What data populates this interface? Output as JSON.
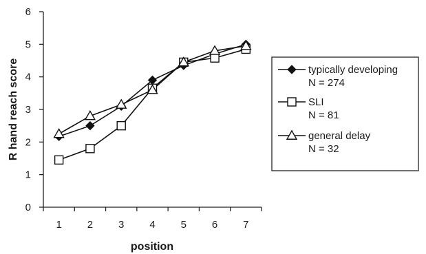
{
  "chart_data": {
    "type": "line",
    "title": "",
    "xlabel": "position",
    "ylabel": "R hand reach score",
    "x": [
      1,
      2,
      3,
      4,
      5,
      6,
      7
    ],
    "x_tick_labels": [
      "1",
      "2",
      "3",
      "4",
      "5",
      "6",
      "7"
    ],
    "xlim": [
      0.5,
      7.5
    ],
    "ylim": [
      0,
      6
    ],
    "y_tick_labels": [
      "0",
      "1",
      "2",
      "3",
      "4",
      "5",
      "6"
    ],
    "grid": false,
    "legend_position": "right",
    "series": [
      {
        "name": "typically developing",
        "sublabel": "N = 274",
        "marker": "diamond-filled",
        "color": "#111111",
        "values": [
          2.17,
          2.5,
          3.1,
          3.9,
          4.35,
          4.7,
          5.0
        ]
      },
      {
        "name": "SLI",
        "sublabel": "N = 81",
        "marker": "square-open",
        "color": "#111111",
        "values": [
          1.45,
          1.8,
          2.5,
          3.65,
          4.45,
          4.58,
          4.85
        ]
      },
      {
        "name": "general delay",
        "sublabel": "N = 32",
        "marker": "triangle-open",
        "color": "#111111",
        "values": [
          2.25,
          2.8,
          3.15,
          3.6,
          4.45,
          4.8,
          4.95
        ]
      }
    ]
  }
}
